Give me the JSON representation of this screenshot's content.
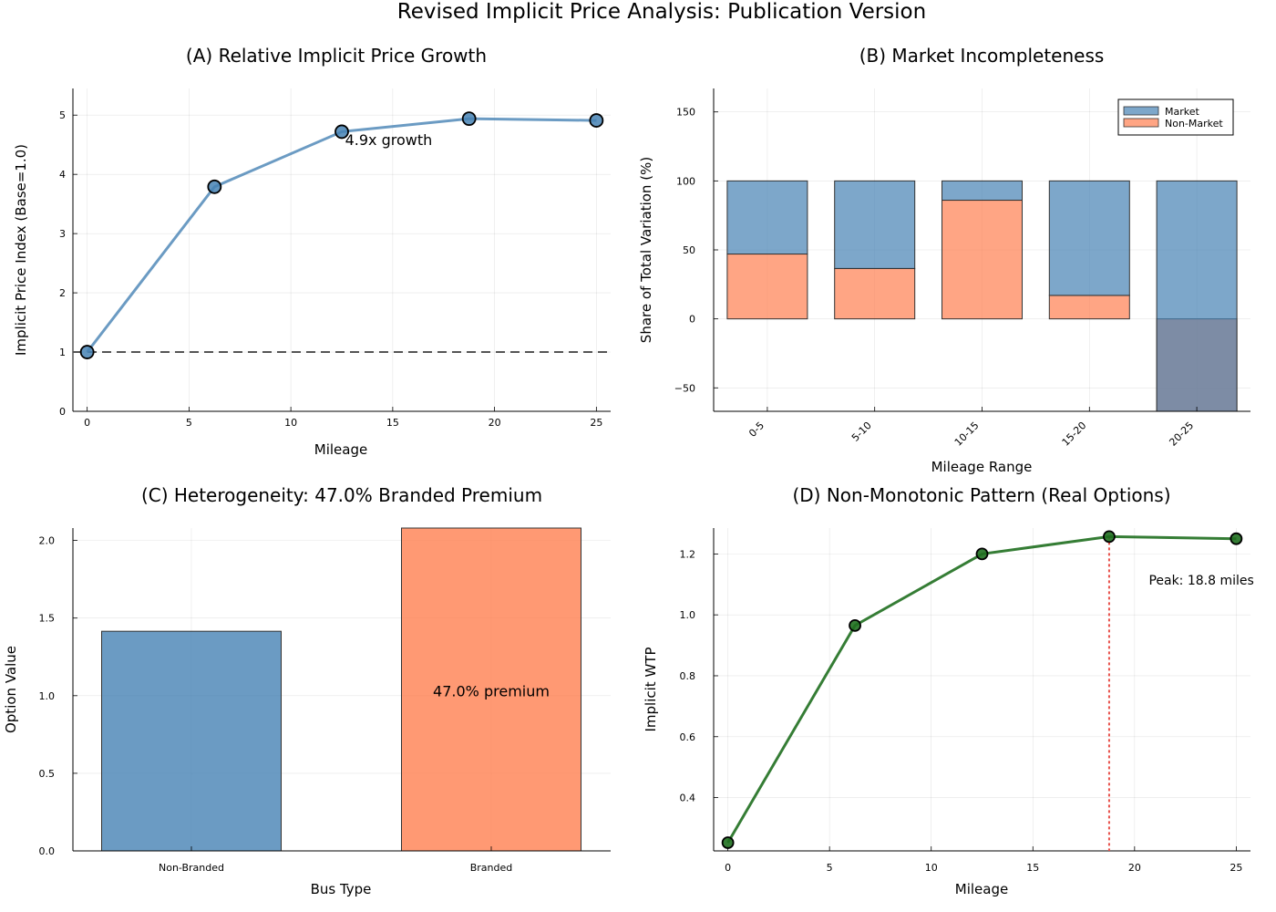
{
  "figure": {
    "title": "Revised Implicit Price Analysis: Publication Version"
  },
  "colors": {
    "blue": "#4682b4",
    "salmon": "#ff7f50",
    "green": "#1f6f1f",
    "dash": "#555555",
    "red": "#e8504a"
  },
  "chart_data": [
    {
      "type": "line",
      "title": "(A) Relative Implicit Price Growth",
      "xlabel": "Mileage",
      "ylabel": "Implicit Price Index (Base=1.0)",
      "x": [
        0,
        6.25,
        12.5,
        18.75,
        25
      ],
      "y": [
        1.0,
        3.79,
        4.72,
        4.94,
        4.91
      ],
      "xlim": [
        -0.7,
        25.7
      ],
      "ylim": [
        0,
        5.45
      ],
      "xticks": [
        0,
        5,
        10,
        15,
        20,
        25
      ],
      "yticks": [
        0,
        1,
        2,
        3,
        4,
        5
      ],
      "reference_line": {
        "y": 1,
        "style": "dashed"
      },
      "annotation": {
        "text": "4.9x growth",
        "x": 14.8,
        "y": 4.4
      },
      "grid": true
    },
    {
      "type": "bar",
      "stacked": true,
      "title": "(B) Market Incompleteness",
      "xlabel": "Mileage Range",
      "ylabel": "Share of Total Variation (%)",
      "categories": [
        "0-5",
        "5-10",
        "10-15",
        "15-20",
        "20-25"
      ],
      "series": [
        {
          "name": "Non-Market",
          "values": [
            47,
            36.5,
            86,
            17,
            -67
          ]
        },
        {
          "name": "Market",
          "values": [
            53,
            63.5,
            14,
            83,
            167
          ]
        }
      ],
      "ylim": [
        -67,
        167
      ],
      "yticks": [
        -50,
        0,
        50,
        100,
        150
      ],
      "legend": {
        "placement": "top-right",
        "entries": [
          "Market",
          "Non-Market"
        ]
      },
      "grid": true
    },
    {
      "type": "bar",
      "title": "(C) Heterogeneity: 47.0% Branded Premium",
      "xlabel": "Bus Type",
      "ylabel": "Option Value",
      "categories": [
        "Non-Branded",
        "Branded"
      ],
      "values": [
        1.415,
        2.08
      ],
      "ylim": [
        0,
        2.08
      ],
      "yticks": [
        0.0,
        0.5,
        1.0,
        1.5,
        2.0
      ],
      "annotation": {
        "text": "47.0% premium",
        "category": "Branded",
        "y": 1.03
      },
      "grid": true
    },
    {
      "type": "line",
      "title": "(D) Non-Monotonic Pattern (Real Options)",
      "xlabel": "Mileage",
      "ylabel": "Implicit WTP",
      "x": [
        0,
        6.25,
        12.5,
        18.75,
        25
      ],
      "y": [
        0.252,
        0.965,
        1.2,
        1.257,
        1.25
      ],
      "xlim": [
        -0.7,
        25.7
      ],
      "ylim": [
        0.225,
        1.285
      ],
      "xticks": [
        0,
        5,
        10,
        15,
        20,
        25
      ],
      "yticks": [
        0.4,
        0.6,
        0.8,
        1.0,
        1.2
      ],
      "peak_line": {
        "x": 18.75,
        "style": "dotted"
      },
      "annotation": {
        "text": "Peak: 18.8 miles",
        "x": 20.7,
        "y": 1.115
      },
      "grid": true
    }
  ]
}
